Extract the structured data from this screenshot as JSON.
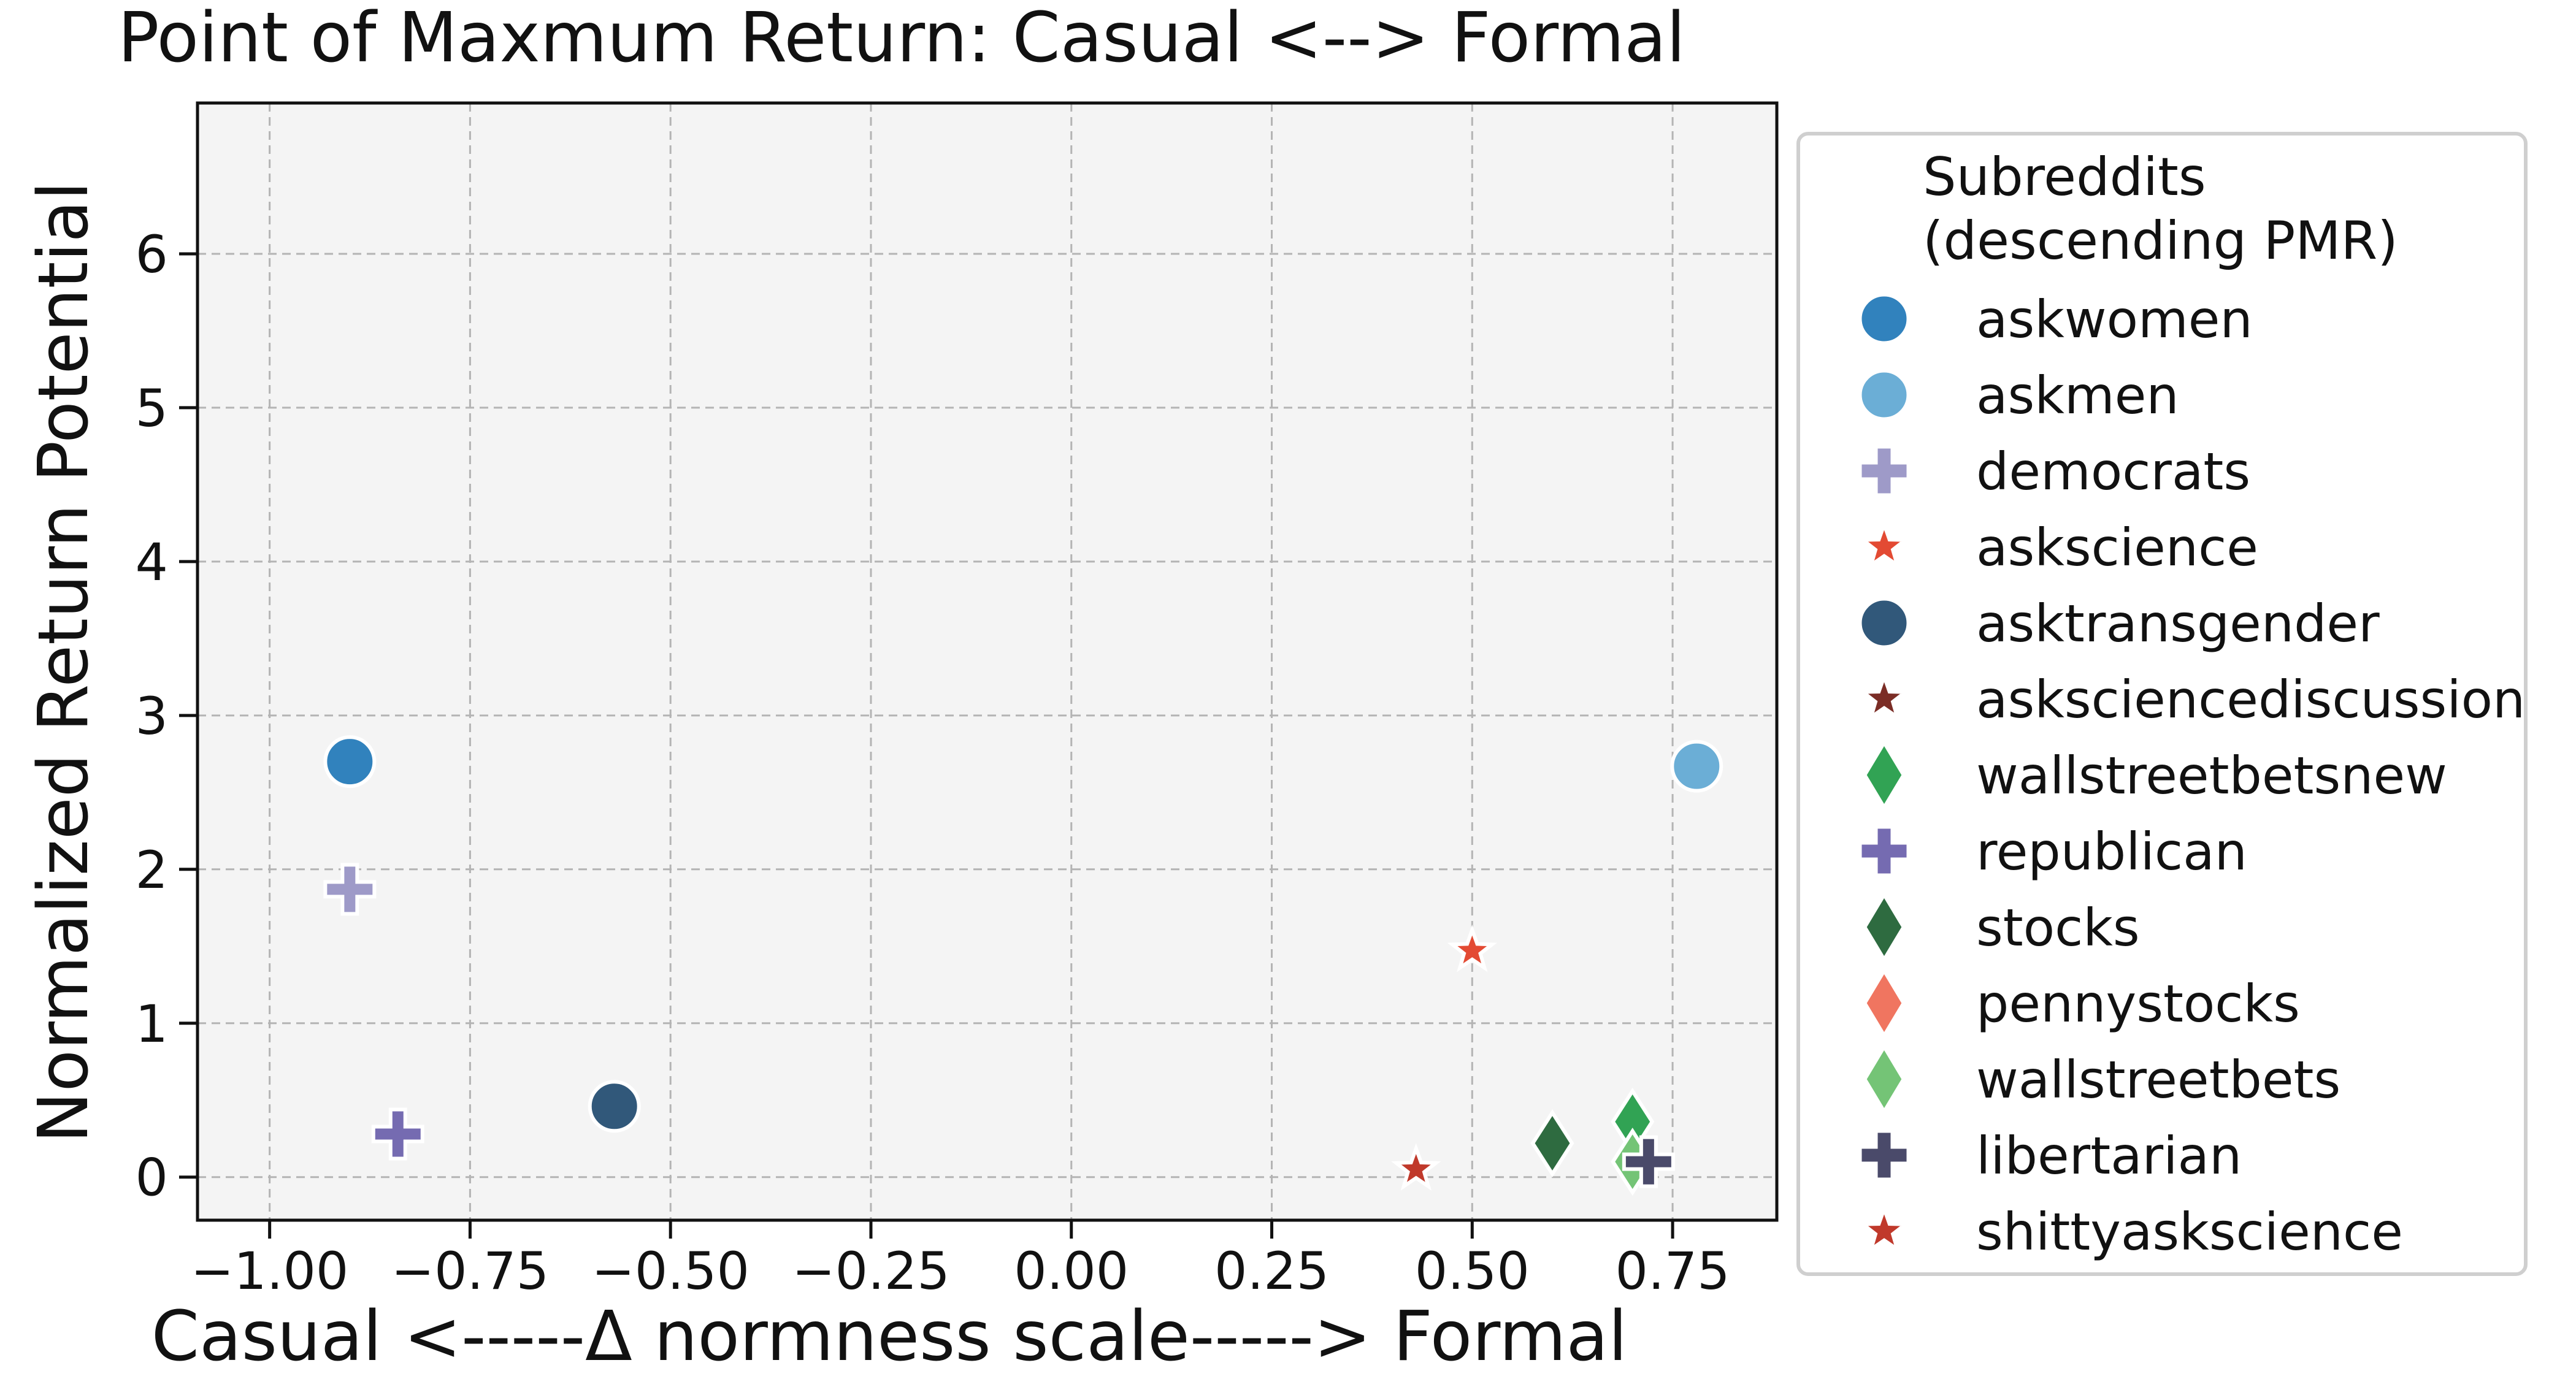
{
  "chart_data": {
    "type": "scatter",
    "title": "Point of Maxmum Return: Casual <--> Formal",
    "xlabel": "Casual <-----Δ normness scale-----> Formal",
    "ylabel": "Normalized Return Potential",
    "xlim": [
      -1.09,
      0.88
    ],
    "ylim": [
      -0.28,
      6.98
    ],
    "xticks": [
      -1.0,
      -0.75,
      -0.5,
      -0.25,
      0.0,
      0.25,
      0.5,
      0.75
    ],
    "xtick_labels": [
      "−1.00",
      "−0.75",
      "−0.50",
      "−0.25",
      "0.00",
      "0.25",
      "0.50",
      "0.75"
    ],
    "yticks": [
      0,
      1,
      2,
      3,
      4,
      5,
      6
    ],
    "ytick_labels": [
      "0",
      "1",
      "2",
      "3",
      "4",
      "5",
      "6"
    ],
    "grid": true,
    "legend": {
      "title": "Subreddits\n(descending PMR)",
      "placement": "outside-right"
    },
    "series": [
      {
        "name": "askwomen",
        "marker": "circle",
        "color": "#3182bd",
        "x": -0.9,
        "y": 2.7
      },
      {
        "name": "askmen",
        "marker": "circle",
        "color": "#6baed6",
        "x": 0.78,
        "y": 2.67
      },
      {
        "name": "democrats",
        "marker": "plus",
        "color": "#9e9ac8",
        "x": -0.9,
        "y": 1.87
      },
      {
        "name": "askscience",
        "marker": "star",
        "color": "#e34a33",
        "x": 0.5,
        "y": 1.47
      },
      {
        "name": "asktransgender",
        "marker": "circle",
        "color": "#31587a",
        "x": -0.57,
        "y": 0.46
      },
      {
        "name": "asksciencediscussion",
        "marker": "star",
        "color": "#7b2d26",
        "x": null,
        "y": null
      },
      {
        "name": "wallstreetbetsnew",
        "marker": "diamond",
        "color": "#31a354",
        "x": 0.7,
        "y": 0.36
      },
      {
        "name": "republican",
        "marker": "plus",
        "color": "#756bb1",
        "x": -0.84,
        "y": 0.28
      },
      {
        "name": "stocks",
        "marker": "diamond",
        "color": "#2e6b40",
        "x": 0.6,
        "y": 0.22
      },
      {
        "name": "pennystocks",
        "marker": "diamond",
        "color": "#f07560",
        "x": null,
        "y": null
      },
      {
        "name": "wallstreetbets",
        "marker": "diamond",
        "color": "#74c476",
        "x": 0.7,
        "y": 0.1
      },
      {
        "name": "libertarian",
        "marker": "plus",
        "color": "#4a4a6a",
        "x": 0.72,
        "y": 0.1
      },
      {
        "name": "shittyaskscience",
        "marker": "star",
        "color": "#c0392b",
        "x": 0.43,
        "y": 0.05
      }
    ]
  }
}
